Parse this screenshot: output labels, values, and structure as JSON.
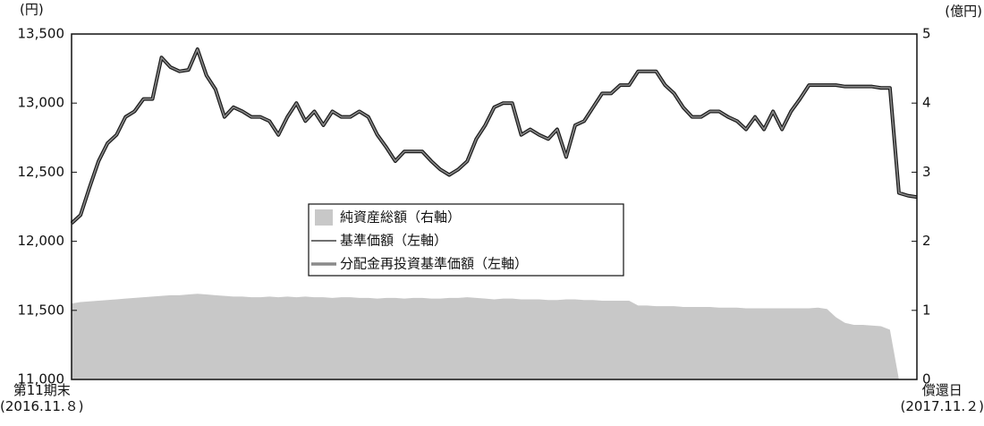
{
  "chart_data": {
    "type": "line",
    "y_unit_label": "(円)",
    "y2_unit_label": "(億円)",
    "categories": [
      "第11期末\n(2016.11.８)",
      null,
      null,
      null,
      null,
      null,
      null,
      null,
      null,
      null,
      null,
      null,
      null,
      null,
      null,
      null,
      null,
      null,
      null,
      null,
      null,
      null,
      null,
      null,
      null,
      null,
      null,
      null,
      null,
      null,
      null,
      null,
      null,
      null,
      null,
      null,
      null,
      null,
      null,
      null,
      null,
      null,
      null,
      null,
      null,
      null,
      null,
      null,
      null,
      null,
      null,
      null,
      null,
      null,
      null,
      null,
      null,
      null,
      null,
      null,
      null,
      null,
      null,
      null,
      null,
      null,
      null,
      null,
      null,
      null,
      null,
      null,
      null,
      null,
      null,
      null,
      null,
      null,
      null,
      null,
      null,
      null,
      null,
      null,
      null,
      null,
      null,
      null,
      null,
      null,
      null,
      null,
      null,
      null,
      "償還日\n(2017.11.２)"
    ],
    "ylim": [
      11000,
      13500
    ],
    "yticks": [
      {
        "value": 11000,
        "label": "11,000"
      },
      {
        "value": 11500,
        "label": "11,500"
      },
      {
        "value": 12000,
        "label": "12,000"
      },
      {
        "value": 12500,
        "label": "12,500"
      },
      {
        "value": 13000,
        "label": "13,000"
      },
      {
        "value": 13500,
        "label": "13,500"
      }
    ],
    "y2lim": [
      0,
      5
    ],
    "y2ticks": [
      0,
      1,
      2,
      3,
      4,
      5
    ],
    "series": [
      {
        "name": "純資産総額（右軸）",
        "kind": "area",
        "axis": "y2",
        "color": "#c8c8c8",
        "values": [
          1.1,
          1.12,
          1.13,
          1.14,
          1.15,
          1.16,
          1.17,
          1.18,
          1.19,
          1.2,
          1.21,
          1.22,
          1.22,
          1.23,
          1.24,
          1.23,
          1.22,
          1.21,
          1.2,
          1.2,
          1.19,
          1.19,
          1.2,
          1.19,
          1.2,
          1.19,
          1.2,
          1.19,
          1.19,
          1.18,
          1.19,
          1.19,
          1.18,
          1.18,
          1.17,
          1.18,
          1.18,
          1.17,
          1.18,
          1.18,
          1.17,
          1.17,
          1.18,
          1.18,
          1.19,
          1.18,
          1.17,
          1.16,
          1.17,
          1.17,
          1.16,
          1.16,
          1.16,
          1.15,
          1.15,
          1.16,
          1.16,
          1.15,
          1.15,
          1.14,
          1.14,
          1.14,
          1.14,
          1.07,
          1.07,
          1.06,
          1.06,
          1.06,
          1.05,
          1.05,
          1.05,
          1.05,
          1.04,
          1.04,
          1.04,
          1.03,
          1.03,
          1.03,
          1.03,
          1.03,
          1.03,
          1.03,
          1.03,
          1.04,
          1.02,
          0.9,
          0.82,
          0.79,
          0.79,
          0.78,
          0.77,
          0.72,
          0,
          0,
          0
        ]
      },
      {
        "name": "基準価額（左軸）",
        "kind": "line",
        "color": "#1a1a1a",
        "values": [
          12130,
          12190,
          12390,
          12580,
          12710,
          12770,
          12900,
          12940,
          13030,
          13030,
          13330,
          13260,
          13230,
          13240,
          13390,
          13200,
          13100,
          12900,
          12970,
          12940,
          12900,
          12900,
          12870,
          12770,
          12900,
          13000,
          12870,
          12940,
          12840,
          12940,
          12900,
          12900,
          12940,
          12900,
          12770,
          12680,
          12580,
          12650,
          12650,
          12650,
          12580,
          12520,
          12480,
          12520,
          12580,
          12740,
          12840,
          12970,
          13000,
          13000,
          12770,
          12810,
          12770,
          12740,
          12810,
          12610,
          12840,
          12870,
          12970,
          13070,
          13070,
          13130,
          13130,
          13230,
          13230,
          13230,
          13130,
          13070,
          12970,
          12900,
          12900,
          12940,
          12940,
          12900,
          12870,
          12810,
          12900,
          12810,
          12940,
          12810,
          12940,
          13030,
          13130,
          13130,
          13130,
          13130,
          13120,
          13120,
          13120,
          13120,
          13110,
          13110,
          12350,
          12330,
          12320
        ]
      },
      {
        "name": "分配金再投資基準価額（左軸）",
        "kind": "line",
        "color": "#8a8a8a",
        "values": [
          12130,
          12190,
          12390,
          12580,
          12710,
          12770,
          12900,
          12940,
          13030,
          13030,
          13330,
          13260,
          13230,
          13240,
          13390,
          13200,
          13100,
          12900,
          12970,
          12940,
          12900,
          12900,
          12870,
          12770,
          12900,
          13000,
          12870,
          12940,
          12840,
          12940,
          12900,
          12900,
          12940,
          12900,
          12770,
          12680,
          12580,
          12650,
          12650,
          12650,
          12580,
          12520,
          12480,
          12520,
          12580,
          12740,
          12840,
          12970,
          13000,
          13000,
          12770,
          12810,
          12770,
          12740,
          12810,
          12610,
          12840,
          12870,
          12970,
          13070,
          13070,
          13130,
          13130,
          13230,
          13230,
          13230,
          13130,
          13070,
          12970,
          12900,
          12900,
          12940,
          12940,
          12900,
          12870,
          12810,
          12900,
          12810,
          12940,
          12810,
          12940,
          13030,
          13130,
          13130,
          13130,
          13130,
          13120,
          13120,
          13120,
          13120,
          13110,
          13110,
          12350,
          12330,
          12320
        ]
      }
    ]
  }
}
